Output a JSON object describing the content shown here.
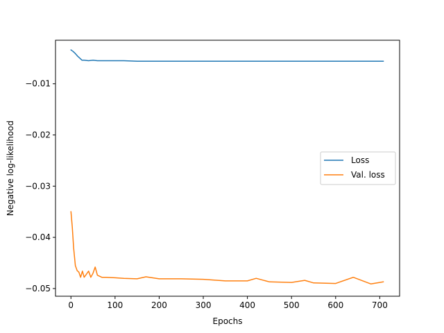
{
  "chart_data": {
    "type": "line",
    "title": "",
    "xlabel": "Epochs",
    "ylabel": "Negative log-likelihood",
    "xlim": [
      -35,
      745
    ],
    "ylim": [
      -0.0515,
      -0.0015
    ],
    "x_ticks": [
      0,
      100,
      200,
      300,
      400,
      500,
      600,
      700
    ],
    "y_ticks": [
      -0.05,
      -0.04,
      -0.03,
      -0.02,
      -0.01
    ],
    "y_tick_labels": [
      "−0.05",
      "−0.04",
      "−0.03",
      "−0.02",
      "−0.01"
    ],
    "grid": false,
    "legend_position": "center-right",
    "series": [
      {
        "name": "Loss",
        "color": "#1f77b4",
        "x": [
          0,
          5,
          10,
          15,
          20,
          25,
          30,
          40,
          50,
          60,
          80,
          100,
          120,
          150,
          200,
          250,
          300,
          350,
          400,
          450,
          500,
          550,
          600,
          650,
          708
        ],
        "y": [
          -0.0034,
          -0.0037,
          -0.0041,
          -0.0046,
          -0.005,
          -0.0054,
          -0.0054,
          -0.0055,
          -0.0054,
          -0.0055,
          -0.0055,
          -0.0055,
          -0.0055,
          -0.0056,
          -0.0056,
          -0.0056,
          -0.0056,
          -0.0056,
          -0.0056,
          -0.0056,
          -0.0056,
          -0.0056,
          -0.0056,
          -0.0056,
          -0.0056
        ]
      },
      {
        "name": "Val. loss",
        "color": "#ff7f0e",
        "x": [
          0,
          3,
          6,
          10,
          14,
          18,
          22,
          26,
          30,
          35,
          40,
          45,
          50,
          55,
          60,
          70,
          80,
          100,
          120,
          150,
          170,
          200,
          250,
          300,
          350,
          400,
          420,
          450,
          500,
          530,
          550,
          600,
          640,
          680,
          708
        ],
        "y": [
          -0.035,
          -0.038,
          -0.042,
          -0.0455,
          -0.0465,
          -0.0468,
          -0.0478,
          -0.0466,
          -0.0478,
          -0.0472,
          -0.0466,
          -0.0478,
          -0.047,
          -0.0458,
          -0.0474,
          -0.0478,
          -0.0478,
          -0.0479,
          -0.048,
          -0.0481,
          -0.0477,
          -0.0481,
          -0.0481,
          -0.0482,
          -0.0485,
          -0.0485,
          -0.048,
          -0.0487,
          -0.0488,
          -0.0484,
          -0.0489,
          -0.049,
          -0.0478,
          -0.0491,
          -0.0487
        ]
      }
    ]
  }
}
